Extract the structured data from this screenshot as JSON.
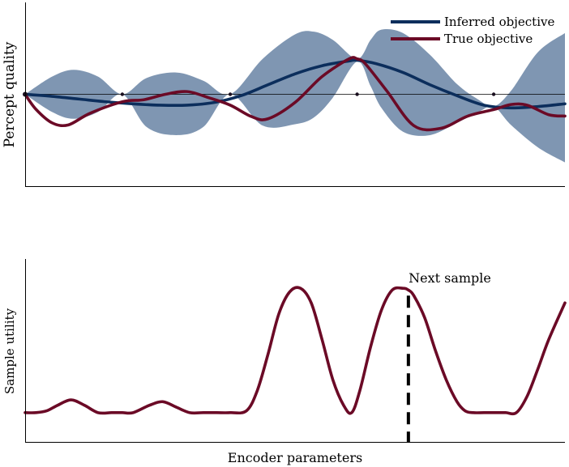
{
  "chart_data": [
    {
      "type": "line",
      "ylabel": "Percept quality",
      "xlabel": "",
      "xlim": [
        0,
        1
      ],
      "ylim": [
        -1.35,
        1.35
      ],
      "baseline": 0,
      "grid": false,
      "legend_position": "top-right",
      "legend": [
        "Inferred objective",
        "True objective"
      ],
      "samples_x": [
        0,
        0.18,
        0.38,
        0.615,
        0.868
      ],
      "series": [
        {
          "name": "Inferred objective",
          "color": "#0c2e5c",
          "x": [
            0,
            0.05,
            0.1,
            0.15,
            0.2,
            0.25,
            0.3,
            0.35,
            0.4,
            0.45,
            0.5,
            0.55,
            0.6,
            0.615,
            0.65,
            0.7,
            0.75,
            0.8,
            0.85,
            0.9,
            0.95,
            1.0
          ],
          "y": [
            0,
            -0.03,
            -0.07,
            -0.11,
            -0.14,
            -0.16,
            -0.16,
            -0.12,
            -0.02,
            0.14,
            0.3,
            0.42,
            0.49,
            0.5,
            0.45,
            0.32,
            0.14,
            -0.02,
            -0.16,
            -0.2,
            -0.18,
            -0.14
          ]
        },
        {
          "name": "True objective",
          "color": "#6b0a26",
          "x": [
            0,
            0.02,
            0.05,
            0.08,
            0.12,
            0.18,
            0.22,
            0.26,
            0.3,
            0.34,
            0.38,
            0.42,
            0.45,
            0.5,
            0.55,
            0.6,
            0.615,
            0.63,
            0.67,
            0.72,
            0.77,
            0.82,
            0.87,
            0.9,
            0.93,
            0.97,
            1.0
          ],
          "y": [
            0,
            -0.22,
            -0.42,
            -0.45,
            -0.28,
            -0.11,
            -0.08,
            0.0,
            0.04,
            -0.05,
            -0.16,
            -0.33,
            -0.36,
            -0.12,
            0.26,
            0.52,
            0.52,
            0.45,
            0.05,
            -0.46,
            -0.5,
            -0.32,
            -0.22,
            -0.15,
            -0.16,
            -0.3,
            -0.32
          ]
        }
      ],
      "uncertainty_band": {
        "color": "#7f96b2",
        "x": [
          0,
          0.05,
          0.09,
          0.135,
          0.18,
          0.225,
          0.28,
          0.33,
          0.38,
          0.44,
          0.5,
          0.535,
          0.57,
          0.615,
          0.64,
          0.66,
          0.7,
          0.75,
          0.8,
          0.84,
          0.868,
          0.9,
          0.95,
          1.0
        ],
        "upper": [
          0,
          0.26,
          0.36,
          0.26,
          0,
          0.24,
          0.32,
          0.2,
          0,
          0.52,
          0.88,
          0.92,
          0.8,
          0.52,
          0.8,
          0.95,
          0.9,
          0.58,
          0.15,
          -0.08,
          -0.18,
          0.05,
          0.62,
          0.9
        ],
        "lower": [
          0,
          -0.26,
          -0.36,
          -0.26,
          0,
          -0.48,
          -0.6,
          -0.48,
          0,
          -0.46,
          -0.44,
          -0.34,
          -0.05,
          0.48,
          0.12,
          -0.2,
          -0.55,
          -0.6,
          -0.42,
          -0.26,
          -0.18,
          -0.45,
          -0.78,
          -1.0
        ]
      }
    },
    {
      "type": "line",
      "ylabel": "Sample utility",
      "xlabel": "Encoder parameters",
      "xlim": [
        0,
        1
      ],
      "ylim": [
        0,
        1
      ],
      "grid": false,
      "annotation": {
        "text": "Next sample",
        "x": 0.71
      },
      "series": [
        {
          "color": "#6b0a26",
          "x": [
            0,
            0.02,
            0.04,
            0.06,
            0.085,
            0.11,
            0.135,
            0.16,
            0.18,
            0.2,
            0.23,
            0.255,
            0.28,
            0.305,
            0.33,
            0.355,
            0.38,
            0.41,
            0.43,
            0.45,
            0.47,
            0.49,
            0.51,
            0.53,
            0.55,
            0.57,
            0.59,
            0.605,
            0.62,
            0.64,
            0.66,
            0.68,
            0.7,
            0.71,
            0.72,
            0.74,
            0.76,
            0.78,
            0.8,
            0.815,
            0.83,
            0.85,
            0.87,
            0.89,
            0.91,
            0.93,
            0.95,
            0.97,
            1.0
          ],
          "y": [
            0.16,
            0.16,
            0.17,
            0.2,
            0.23,
            0.2,
            0.16,
            0.16,
            0.16,
            0.16,
            0.2,
            0.22,
            0.19,
            0.16,
            0.16,
            0.16,
            0.16,
            0.17,
            0.28,
            0.48,
            0.7,
            0.82,
            0.84,
            0.76,
            0.56,
            0.34,
            0.2,
            0.16,
            0.28,
            0.52,
            0.72,
            0.83,
            0.84,
            0.83,
            0.8,
            0.68,
            0.5,
            0.34,
            0.22,
            0.17,
            0.16,
            0.16,
            0.16,
            0.16,
            0.16,
            0.25,
            0.4,
            0.56,
            0.76
          ]
        }
      ]
    }
  ]
}
